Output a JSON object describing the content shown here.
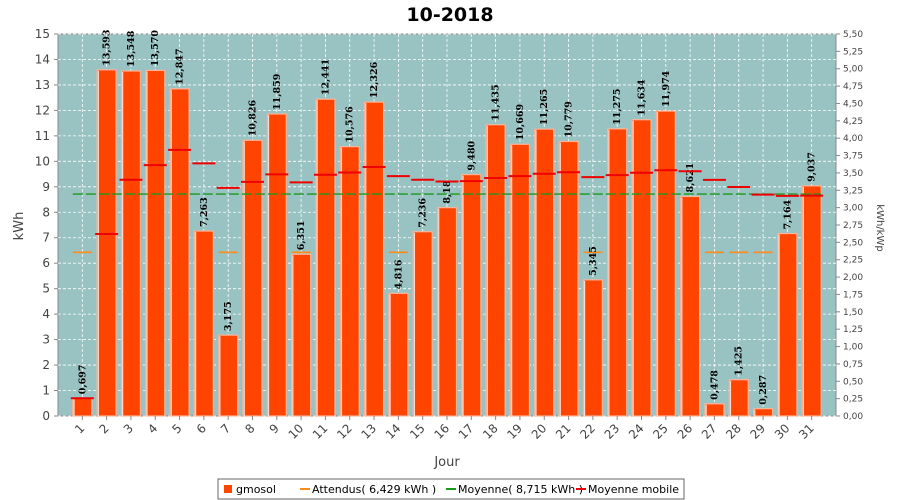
{
  "chart_data": {
    "type": "bar",
    "title": "10-2018",
    "xlabel": "Jour",
    "ylabel": "kWh",
    "ylabel_right": "kWh/kWp",
    "ylim": [
      0,
      15
    ],
    "ylim_right": [
      0,
      5.5
    ],
    "y_ticks": [
      "0",
      "1",
      "2",
      "3",
      "4",
      "5",
      "6",
      "7",
      "8",
      "9",
      "10",
      "11",
      "12",
      "13",
      "14",
      "15"
    ],
    "y_right_ticks": [
      "0,00",
      "0,25",
      "0,50",
      "0,75",
      "1,00",
      "1,25",
      "1,50",
      "1,75",
      "2,00",
      "2,25",
      "2,50",
      "2,75",
      "3,00",
      "3,25",
      "3,50",
      "3,75",
      "4,00",
      "4,25",
      "4,50",
      "4,75",
      "5,00",
      "5,25",
      "5,50"
    ],
    "categories": [
      "1",
      "2",
      "3",
      "4",
      "5",
      "6",
      "7",
      "8",
      "9",
      "10",
      "11",
      "12",
      "13",
      "14",
      "15",
      "16",
      "17",
      "18",
      "19",
      "20",
      "21",
      "22",
      "23",
      "24",
      "25",
      "26",
      "27",
      "28",
      "29",
      "30",
      "31"
    ],
    "series": [
      {
        "name": "gmosol",
        "color": "#ff4400",
        "values": [
          0.697,
          13.593,
          13.548,
          13.57,
          12.847,
          7.263,
          3.175,
          10.826,
          11.859,
          6.351,
          12.441,
          10.576,
          12.326,
          4.816,
          7.236,
          8.18,
          9.48,
          11.435,
          10.669,
          11.265,
          10.779,
          5.345,
          11.275,
          11.634,
          11.974,
          8.621,
          0.478,
          1.425,
          0.287,
          7.164,
          9.037
        ],
        "labels": [
          "0,697",
          "13,593",
          "13,548",
          "13,570",
          "12,847",
          "7,263",
          "3,175",
          "10,826",
          "11,859",
          "6,351",
          "12,441",
          "10,576",
          "12,326",
          "4,816",
          "7,236",
          "8,18",
          "9,480",
          "11,435",
          "10,669",
          "11,265",
          "10,779",
          "5,345",
          "11,275",
          "11,634",
          "11,974",
          "8,621",
          "0,478",
          "1,425",
          "0,287",
          "7,164",
          "9,037"
        ]
      },
      {
        "name": "Attendus( 6,429 kWh )",
        "color": "#ff8c1a",
        "values": [
          6.429,
          6.429,
          6.429,
          6.429,
          6.429,
          6.429,
          6.429,
          6.429,
          6.429,
          6.429,
          6.429,
          6.429,
          6.429,
          6.429,
          6.429,
          6.429,
          6.429,
          6.429,
          6.429,
          6.429,
          6.429,
          6.429,
          6.429,
          6.429,
          6.429,
          6.429,
          6.429,
          6.429,
          6.429,
          6.429,
          6.429
        ]
      },
      {
        "name": "Moyenne( 8,715 kWh )",
        "color": "#1a9a1a",
        "value": 8.715
      },
      {
        "name": "Moyenne mobile",
        "color": "#ee0000",
        "values": [
          0.697,
          7.145,
          9.279,
          9.852,
          10.451,
          9.92,
          8.957,
          9.191,
          9.487,
          9.174,
          9.471,
          9.563,
          9.776,
          9.421,
          9.276,
          9.207,
          9.223,
          9.346,
          9.418,
          9.51,
          9.57,
          9.378,
          9.46,
          9.554,
          9.651,
          9.612,
          9.274,
          8.994,
          8.694,
          8.643,
          8.655
        ]
      }
    ],
    "legend": {
      "position": "bottom",
      "entries": [
        "gmosol",
        "Attendus( 6,429 kWh )",
        "Moyenne( 8,715 kWh )",
        "Moyenne mobile"
      ]
    },
    "grid": true,
    "colors": {
      "plot_bg": "#99c2c2",
      "grid": "#ffffff",
      "bar": "#ff4400",
      "bar_edge": "#ffb399"
    }
  }
}
